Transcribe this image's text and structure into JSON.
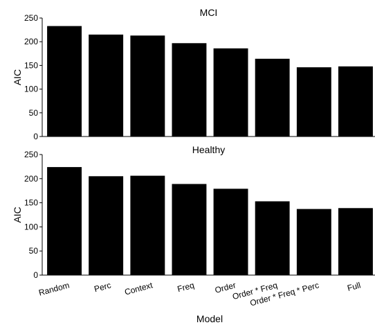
{
  "chart_data": [
    {
      "type": "bar",
      "title": "MCI",
      "ylabel": "AIC",
      "xlabel": "",
      "ylim": [
        0,
        250
      ],
      "yticks": [
        0,
        50,
        100,
        150,
        200,
        250
      ],
      "categories": [
        "Random",
        "Perc",
        "Context",
        "Freq",
        "Order",
        "Order * Freq",
        "Order * Freq * Perc",
        "Full"
      ],
      "values": [
        233,
        215,
        213,
        197,
        186,
        164,
        146,
        148
      ],
      "bar_color": "#000000",
      "grid": false
    },
    {
      "type": "bar",
      "title": "Healthy",
      "ylabel": "AIC",
      "xlabel": "Model",
      "ylim": [
        0,
        250
      ],
      "yticks": [
        0,
        50,
        100,
        150,
        200,
        250
      ],
      "categories": [
        "Random",
        "Perc",
        "Context",
        "Freq",
        "Order",
        "Order * Freq",
        "Order * Freq * Perc",
        "Full"
      ],
      "values": [
        224,
        205,
        206,
        189,
        179,
        153,
        137,
        139
      ],
      "bar_color": "#000000",
      "grid": false
    }
  ]
}
